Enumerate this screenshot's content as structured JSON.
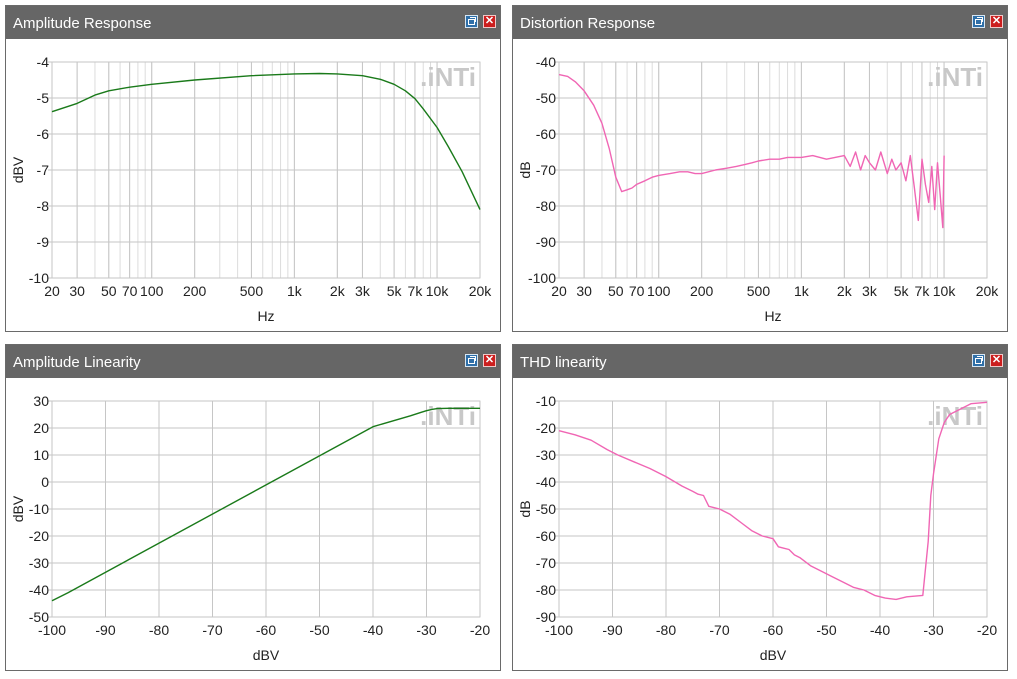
{
  "window_controls": {
    "restore_icon": "restore-window-icon",
    "close_icon": "close-icon",
    "close_glyph": "✕"
  },
  "logo_text": ".iNTi",
  "chart_data": [
    {
      "id": "amp-response",
      "type": "line",
      "title": "Amplitude Response",
      "xlabel": "Hz",
      "ylabel": "dBV",
      "xscale": "log",
      "xlim": [
        20,
        20000
      ],
      "ylim": [
        -10,
        -4
      ],
      "xticks": [
        20,
        30,
        50,
        70,
        100,
        200,
        500,
        1000,
        2000,
        3000,
        5000,
        7000,
        10000,
        20000
      ],
      "xticklabels": [
        "20",
        "30",
        "50",
        "70",
        "100",
        "200",
        "500",
        "1k",
        "2k",
        "3k",
        "5k",
        "7k",
        "10k",
        "20k"
      ],
      "yticks": [
        -4,
        -5,
        -6,
        -7,
        -8,
        -9,
        -10
      ],
      "yticklabels": [
        "-4",
        "-5",
        "-6",
        "-7",
        "-8",
        "-9",
        "-10"
      ],
      "grid": true,
      "series": [
        {
          "color": "#1a7a1a",
          "x": [
            20,
            30,
            40,
            50,
            70,
            100,
            200,
            500,
            1000,
            1500,
            2000,
            3000,
            4000,
            5000,
            6000,
            7000,
            8000,
            10000,
            12000,
            15000,
            20000
          ],
          "y": [
            -5.38,
            -5.15,
            -4.92,
            -4.8,
            -4.7,
            -4.62,
            -4.5,
            -4.38,
            -4.33,
            -4.32,
            -4.33,
            -4.38,
            -4.48,
            -4.62,
            -4.8,
            -5.02,
            -5.3,
            -5.82,
            -6.35,
            -7.05,
            -8.1
          ]
        }
      ]
    },
    {
      "id": "dist-response",
      "type": "line",
      "title": "Distortion Response",
      "xlabel": "Hz",
      "ylabel": "dB",
      "xscale": "log",
      "xlim": [
        20,
        20000
      ],
      "ylim": [
        -100,
        -40
      ],
      "xticks": [
        20,
        30,
        50,
        70,
        100,
        200,
        500,
        1000,
        2000,
        3000,
        5000,
        7000,
        10000,
        20000
      ],
      "xticklabels": [
        "20",
        "30",
        "50",
        "70",
        "100",
        "200",
        "500",
        "1k",
        "2k",
        "3k",
        "5k",
        "7k",
        "10k",
        "20k"
      ],
      "yticks": [
        -40,
        -50,
        -60,
        -70,
        -80,
        -90,
        -100
      ],
      "yticklabels": [
        "-40",
        "-50",
        "-60",
        "-70",
        "-80",
        "-90",
        "-100"
      ],
      "grid": true,
      "series": [
        {
          "color": "#f066b4",
          "x": [
            20,
            23,
            26,
            30,
            35,
            40,
            45,
            50,
            55,
            60,
            65,
            70,
            80,
            90,
            100,
            120,
            140,
            160,
            180,
            200,
            250,
            300,
            350,
            400,
            450,
            500,
            600,
            700,
            800,
            900,
            1000,
            1200,
            1500,
            2000,
            2200,
            2400,
            2600,
            2800,
            3000,
            3300,
            3600,
            4000,
            4300,
            4600,
            5000,
            5400,
            5800,
            6200,
            6600,
            7000,
            7400,
            7800,
            8200,
            8600,
            9000,
            9400,
            9800,
            10000
          ],
          "y": [
            -43.5,
            -44,
            -45.5,
            -48,
            -52,
            -57,
            -64,
            -72,
            -76,
            -75.5,
            -75,
            -74,
            -73,
            -72,
            -71.5,
            -71,
            -70.5,
            -70.5,
            -71,
            -71,
            -70,
            -69.5,
            -69,
            -68.5,
            -68,
            -67.5,
            -67,
            -67,
            -66.5,
            -66.5,
            -66.5,
            -66,
            -67,
            -66,
            -69,
            -65,
            -70,
            -66,
            -68,
            -70,
            -65,
            -71,
            -67,
            -70,
            -68,
            -73,
            -66,
            -75,
            -84,
            -67,
            -74,
            -79,
            -69,
            -81,
            -68,
            -77,
            -86,
            -66
          ]
        }
      ]
    },
    {
      "id": "amp-linearity",
      "type": "line",
      "title": "Amplitude Linearity",
      "xlabel": "dBV",
      "ylabel": "dBV",
      "xscale": "linear",
      "xlim": [
        -100,
        -20
      ],
      "ylim": [
        -50,
        30
      ],
      "xticks": [
        -100,
        -90,
        -80,
        -70,
        -60,
        -50,
        -40,
        -30,
        -20
      ],
      "xticklabels": [
        "-100",
        "-90",
        "-80",
        "-70",
        "-60",
        "-50",
        "-40",
        "-30",
        "-20"
      ],
      "yticks": [
        30,
        20,
        10,
        0,
        -10,
        -20,
        -30,
        -40,
        -50
      ],
      "yticklabels": [
        "30",
        "20",
        "10",
        "0",
        "-10",
        "-20",
        "-30",
        "-40",
        "-50"
      ],
      "grid": true,
      "series": [
        {
          "color": "#1a7a1a",
          "x": [
            -100,
            -97,
            -40,
            -33,
            -31,
            -30,
            -29,
            -28,
            -26,
            -24,
            -22,
            -20
          ],
          "y": [
            -44,
            -41,
            20.5,
            24.5,
            25.8,
            26.4,
            26.9,
            27.2,
            27.3,
            27.3,
            27.3,
            27.3
          ]
        }
      ]
    },
    {
      "id": "thd-linearity",
      "type": "line",
      "title": "THD linearity",
      "xlabel": "dBV",
      "ylabel": "dB",
      "xscale": "linear",
      "xlim": [
        -100,
        -20
      ],
      "ylim": [
        -90,
        -10
      ],
      "xticks": [
        -100,
        -90,
        -80,
        -70,
        -60,
        -50,
        -40,
        -30,
        -20
      ],
      "xticklabels": [
        "-100",
        "-90",
        "-80",
        "-70",
        "-60",
        "-50",
        "-40",
        "-30",
        "-20"
      ],
      "yticks": [
        -10,
        -20,
        -30,
        -40,
        -50,
        -60,
        -70,
        -80,
        -90
      ],
      "yticklabels": [
        "-10",
        "-20",
        "-30",
        "-40",
        "-50",
        "-60",
        "-70",
        "-80",
        "-90"
      ],
      "grid": true,
      "series": [
        {
          "color": "#f066b4",
          "x": [
            -100,
            -97,
            -94,
            -91,
            -89,
            -86,
            -83,
            -80,
            -77,
            -75,
            -74,
            -73,
            -72,
            -70,
            -68,
            -66,
            -64,
            -62,
            -60,
            -59,
            -58,
            -57,
            -56,
            -55,
            -53,
            -51,
            -49,
            -47,
            -45,
            -43,
            -41,
            -39,
            -37,
            -35,
            -32,
            -31,
            -30.5,
            -30,
            -29,
            -28,
            -27,
            -25,
            -23,
            -20
          ],
          "y": [
            -21,
            -22.5,
            -24.5,
            -28,
            -30,
            -32.5,
            -35,
            -38,
            -41.5,
            -43.5,
            -44.5,
            -45,
            -49,
            -50,
            -52,
            -55,
            -58,
            -60,
            -61,
            -64,
            -64.5,
            -65,
            -67,
            -68,
            -71,
            -73,
            -75,
            -77,
            -79,
            -80,
            -82,
            -83,
            -83.5,
            -82.5,
            -82,
            -62,
            -45,
            -37,
            -24,
            -18,
            -15,
            -13,
            -11,
            -10.5
          ]
        }
      ]
    }
  ]
}
